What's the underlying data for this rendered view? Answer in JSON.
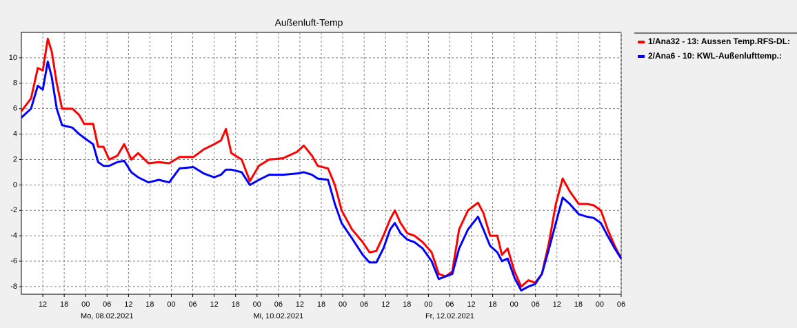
{
  "chart_data": {
    "type": "line",
    "title": "Außenluft-Temp",
    "x": [
      0,
      2.7,
      4.6,
      6,
      7.4,
      8.5,
      9.9,
      11.4,
      14.3,
      16.2,
      17.6,
      20.1,
      21.5,
      23,
      24.6,
      26.9,
      28.8,
      30.8,
      32.7,
      35.6,
      38.5,
      41.4,
      44.3,
      48.2,
      51.1,
      54,
      55.9,
      57.3,
      58.8,
      61.7,
      64,
      66.5,
      69.4,
      73.3,
      77.2,
      79.1,
      81.4,
      83,
      85.9,
      87.8,
      89.7,
      92.6,
      95.6,
      97.5,
      99.4,
      101.4,
      103.3,
      104.6,
      106.2,
      108.1,
      110.1,
      112.4,
      114.9,
      116.9,
      118.8,
      120.7,
      122.6,
      125.1,
      127.9,
      129.4,
      131.3,
      133.3,
      134.6,
      136.2,
      138.1,
      140,
      142,
      143.9,
      145.8,
      147.8,
      149.7,
      151.6,
      153.6,
      156.1,
      158.4,
      160.3,
      162.3,
      164.2,
      166.2,
      168
    ],
    "series": [
      {
        "name": "1/Ana32 - 13: Aussen Temp.RFS-DL:",
        "color": "#ff0000",
        "values": [
          5.8,
          6.8,
          9.2,
          9.0,
          11.5,
          10.5,
          8,
          6,
          6,
          5.5,
          4.8,
          4.8,
          3,
          3,
          2,
          2.3,
          3.2,
          2,
          2.5,
          1.7,
          1.8,
          1.7,
          2.2,
          2.2,
          2.8,
          3.2,
          3.5,
          4.4,
          2.5,
          2.0,
          0.3,
          1.5,
          2.0,
          2.1,
          2.6,
          3.1,
          2.3,
          1.5,
          1.3,
          0,
          -2,
          -3.5,
          -4.5,
          -5.3,
          -5.2,
          -4,
          -2.7,
          -2.0,
          -3,
          -3.8,
          -4,
          -4.5,
          -5.3,
          -7.0,
          -7.2,
          -6.8,
          -3.5,
          -2.0,
          -1.4,
          -2.2,
          -4.0,
          -4.0,
          -5.5,
          -5.0,
          -6.8,
          -8.0,
          -7.5,
          -7.7,
          -7.0,
          -4.5,
          -1.5,
          0.5,
          -0.5,
          -1.5,
          -1.5,
          -1.6,
          -2.0,
          -3.5,
          -4.8,
          -5.8
        ]
      },
      {
        "name": "2/Ana6 - 10: KWL-Außenlufttemp.:",
        "color": "#0000ff",
        "values": [
          5.3,
          6.0,
          7.8,
          7.5,
          9.7,
          8.5,
          6.0,
          4.7,
          4.5,
          4.0,
          3.7,
          3.2,
          1.8,
          1.5,
          1.5,
          1.8,
          1.9,
          1.0,
          0.6,
          0.2,
          0.4,
          0.2,
          1.3,
          1.4,
          0.9,
          0.6,
          0.8,
          1.2,
          1.2,
          1.0,
          0,
          0.4,
          0.8,
          0.8,
          0.9,
          1.0,
          0.8,
          0.5,
          0.4,
          -1.5,
          -3.0,
          -4.2,
          -5.5,
          -6.1,
          -6.1,
          -5.0,
          -3.5,
          -3.0,
          -3.8,
          -4.3,
          -4.5,
          -5.0,
          -6.0,
          -7.4,
          -7.2,
          -7.0,
          -5.0,
          -3.5,
          -2.5,
          -3.5,
          -4.8,
          -5.3,
          -6.0,
          -5.8,
          -7.3,
          -8.3,
          -8.0,
          -7.8,
          -7.0,
          -5.0,
          -3.0,
          -1.0,
          -1.5,
          -2.3,
          -2.5,
          -2.6,
          -3.0,
          -4.0,
          -5.0,
          -5.8
        ]
      }
    ],
    "xlim": [
      0,
      168
    ],
    "xticks": [
      {
        "value": 6,
        "label": "12"
      },
      {
        "value": 12,
        "label": "18"
      },
      {
        "value": 18,
        "label": "00"
      },
      {
        "value": 24,
        "label": "06"
      },
      {
        "value": 30,
        "label": "12"
      },
      {
        "value": 36,
        "label": "18"
      },
      {
        "value": 42,
        "label": "00"
      },
      {
        "value": 48,
        "label": "06"
      },
      {
        "value": 54,
        "label": "12"
      },
      {
        "value": 60,
        "label": "18"
      },
      {
        "value": 66,
        "label": "00"
      },
      {
        "value": 72,
        "label": "06"
      },
      {
        "value": 78,
        "label": "12"
      },
      {
        "value": 84,
        "label": "18"
      },
      {
        "value": 90,
        "label": "00"
      },
      {
        "value": 96,
        "label": "06"
      },
      {
        "value": 102,
        "label": "12"
      },
      {
        "value": 108,
        "label": "18"
      },
      {
        "value": 114,
        "label": "00"
      },
      {
        "value": 120,
        "label": "06"
      },
      {
        "value": 126,
        "label": "12"
      },
      {
        "value": 132,
        "label": "18"
      },
      {
        "value": 138,
        "label": "00"
      },
      {
        "value": 144,
        "label": "06"
      },
      {
        "value": 150,
        "label": "12"
      },
      {
        "value": 156,
        "label": "18"
      },
      {
        "value": 162,
        "label": "00"
      },
      {
        "value": 168,
        "label": "06"
      }
    ],
    "x_date_labels": [
      {
        "value": 24,
        "label": "Mo, 08.02.2021"
      },
      {
        "value": 72,
        "label": "Mi, 10.02.2021"
      },
      {
        "value": 120,
        "label": "Fr, 12.02.2021"
      }
    ],
    "ylim": [
      -8.6,
      12
    ],
    "yticks": [
      -8,
      -6,
      -4,
      -2,
      0,
      2,
      4,
      6,
      8,
      10
    ],
    "grid": true,
    "legend": "right"
  }
}
